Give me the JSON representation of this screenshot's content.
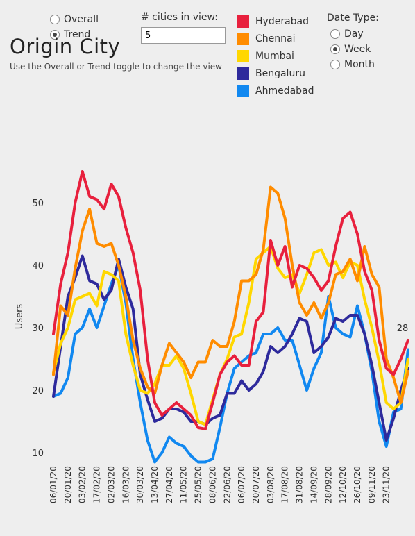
{
  "view_toggle": {
    "options": [
      {
        "label": "Overall",
        "checked": false
      },
      {
        "label": "Trend",
        "checked": true
      }
    ]
  },
  "title": "Origin City",
  "subtitle": "Use the Overall or Trend toggle to change the view",
  "cities_in_view": {
    "label": "# cities in view:",
    "value": "5"
  },
  "date_type": {
    "label": "Date Type:",
    "options": [
      {
        "label": "Day",
        "checked": false
      },
      {
        "label": "Week",
        "checked": true
      },
      {
        "label": "Month",
        "checked": false
      }
    ]
  },
  "chart_data": {
    "type": "line",
    "ylabel": "Users",
    "ylim": [
      5,
      57
    ],
    "yticks": [
      10,
      20,
      30,
      40,
      50
    ],
    "end_label": "28",
    "x_tick_labels": [
      "06/01/20",
      "20/01/20",
      "03/02/20",
      "17/02/20",
      "02/03/20",
      "16/03/20",
      "30/03/20",
      "13/04/20",
      "27/04/20",
      "11/05/20",
      "25/05/20",
      "08/06/20",
      "22/06/20",
      "06/07/20",
      "20/07/20",
      "03/08/20",
      "17/08/20",
      "31/08/20",
      "14/09/20",
      "28/09/20",
      "12/10/20",
      "26/10/20",
      "09/11/20",
      "23/11/20"
    ],
    "series": [
      {
        "name": "Hyderabad",
        "color": "#e8203d",
        "values": [
          29,
          37,
          42,
          50,
          55,
          51,
          50.5,
          49,
          53,
          51,
          46,
          42,
          36,
          25,
          18,
          16,
          17,
          18,
          17,
          16,
          14,
          13.8,
          18,
          22.5,
          24.5,
          25.5,
          24,
          24,
          31,
          32.5,
          44,
          40,
          43,
          36.5,
          40,
          39.5,
          38,
          36,
          37.5,
          43,
          47.5,
          48.5,
          45,
          39,
          36,
          28,
          23.5,
          22.5,
          25,
          28
        ]
      },
      {
        "name": "Chennai",
        "color": "#ff8c00",
        "values": [
          22.5,
          33.5,
          32,
          39.5,
          45.5,
          49,
          43.5,
          43,
          43.5,
          40,
          35,
          28,
          23.5,
          20.5,
          19.5,
          24,
          27.5,
          26,
          24.5,
          22,
          24.5,
          24.5,
          28,
          27,
          27,
          31,
          37.5,
          37.5,
          38.5,
          42.5,
          52.5,
          51.5,
          47.5,
          40,
          34,
          32,
          34,
          31.5,
          34,
          38.5,
          39,
          41,
          37.5,
          43,
          38.5,
          36.5,
          25,
          22,
          18,
          23
        ]
      },
      {
        "name": "Mumbai",
        "color": "#ffd700",
        "values": [
          22.8,
          27.5,
          30,
          34.5,
          35,
          35.5,
          33.5,
          39,
          38.5,
          37.5,
          29,
          24,
          20,
          19.5,
          21,
          24,
          24,
          25.5,
          23.5,
          19.5,
          15,
          14.5,
          18.5,
          22.5,
          25,
          28.5,
          29,
          34,
          41,
          42,
          43,
          39.5,
          38,
          38.5,
          35.5,
          38.5,
          42,
          42.5,
          40,
          40.5,
          38,
          40.5,
          40,
          34.5,
          30,
          24.5,
          18,
          17,
          18,
          25
        ]
      },
      {
        "name": "Bengaluru",
        "color": "#2e2a9c",
        "values": [
          19,
          27,
          35,
          38,
          41.5,
          37.5,
          37,
          34.5,
          36,
          41,
          36.5,
          33,
          22.5,
          18.5,
          15,
          15.5,
          17,
          17,
          16.5,
          15,
          15,
          14.5,
          15.5,
          16,
          19.5,
          19.5,
          21.5,
          20,
          21,
          23,
          27,
          26,
          27,
          29,
          31.5,
          31,
          26,
          27,
          28.5,
          31.5,
          31,
          32,
          32,
          29,
          24,
          18,
          12,
          15.5,
          20,
          23.5
        ]
      },
      {
        "name": "Ahmedabad",
        "color": "#1188f0",
        "values": [
          19,
          19.5,
          22,
          29,
          30,
          33,
          30,
          33.5,
          37,
          40,
          34,
          25,
          18,
          12,
          8.5,
          10,
          12.5,
          11.5,
          11,
          9.5,
          8.5,
          8.5,
          9,
          14,
          19.5,
          23.5,
          24.5,
          25.5,
          26,
          29,
          29,
          30,
          28,
          28,
          24,
          20,
          23.5,
          26,
          35,
          30,
          29,
          28.5,
          33.5,
          29,
          23,
          15,
          11,
          16.5,
          17,
          26.5
        ]
      }
    ]
  }
}
